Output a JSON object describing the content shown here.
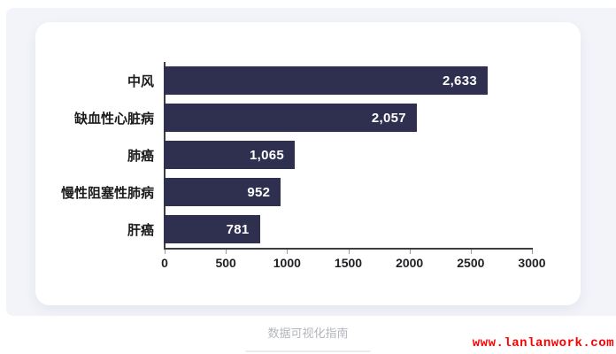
{
  "page": {
    "footer_title": "数据可视化指南",
    "watermark": "www.lanlanwork.com"
  },
  "colors": {
    "page_background": "#ffffff",
    "panel_background": "#f2f4f9",
    "card_background": "#ffffff",
    "bar_color": "#2f3050",
    "value_label_color": "#ffffff",
    "category_label_color": "#1c1c1e",
    "tick_label_color": "#222226",
    "axis_line_color": "#3d3d42",
    "footer_text_color": "#b3b6bd",
    "watermark_color": "#fe0000"
  },
  "chart_data": {
    "type": "bar",
    "orientation": "horizontal",
    "title": "",
    "xlabel": "",
    "ylabel": "",
    "categories": [
      "中风",
      "缺血性心脏病",
      "肺癌",
      "慢性阻塞性肺病",
      "肝癌"
    ],
    "values": [
      2633,
      2057,
      1065,
      952,
      781
    ],
    "value_labels": [
      "2,633",
      "2,057",
      "1,065",
      "952",
      "781"
    ],
    "x_ticks": [
      0,
      500,
      1000,
      1500,
      2000,
      2500,
      3000
    ],
    "x_tick_labels": [
      "0",
      "500",
      "1000",
      "1500",
      "2000",
      "2500",
      "3000"
    ],
    "xlim": [
      0,
      3000
    ],
    "grid": false,
    "legend": "none",
    "bar_color": "#2f3050"
  }
}
